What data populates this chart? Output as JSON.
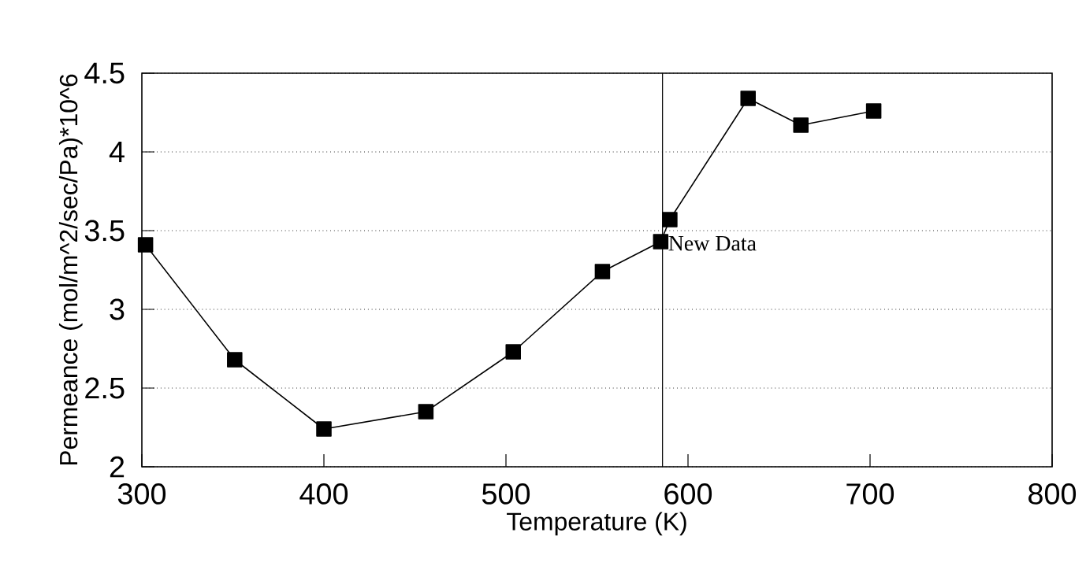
{
  "chart_data": {
    "type": "line",
    "xlabel": "Temperature (K)",
    "ylabel": "Permeance (mol/m^2/sec/Pa)*10^6",
    "x": [
      302,
      351,
      400,
      456,
      504,
      553,
      585,
      590,
      633,
      662,
      702
    ],
    "series": [
      {
        "color": "#000000",
        "values": [
          3.41,
          2.68,
          2.24,
          2.35,
          2.73,
          3.24,
          3.43,
          3.57,
          4.34,
          4.17,
          4.26
        ]
      }
    ],
    "xlim": [
      300,
      800
    ],
    "xticks": [
      300,
      400,
      500,
      600,
      700,
      800
    ],
    "ylim": [
      2,
      4.5
    ],
    "yticks": [
      2,
      2.5,
      3,
      3.5,
      4,
      4.5
    ],
    "grid": "y",
    "marker": "square",
    "line_style": "solid",
    "ref_lines": [
      {
        "axis": "x",
        "value": 586,
        "label": "New Data",
        "color": "#000000"
      }
    ]
  }
}
